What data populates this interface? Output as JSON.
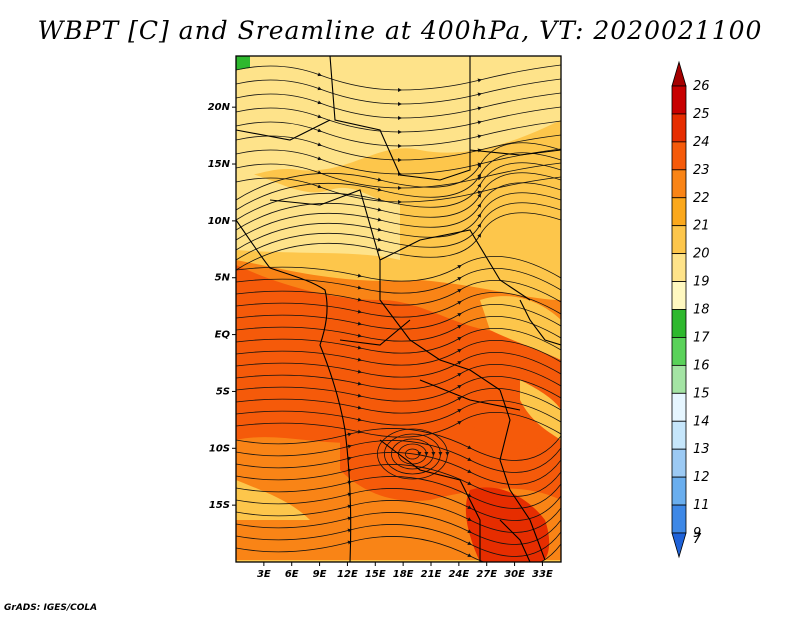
{
  "title": "WBPT [C] and Sreamline at 400hPa, VT: 2020021100",
  "credit": "GrADS: IGES/COLA",
  "map": {
    "lon_range": [
      0,
      35
    ],
    "lat_range": [
      -20,
      24.5
    ],
    "lat_ticks": [
      {
        "value": 20,
        "label": "20N"
      },
      {
        "value": 15,
        "label": "15N"
      },
      {
        "value": 10,
        "label": "10N"
      },
      {
        "value": 5,
        "label": "5N"
      },
      {
        "value": 0,
        "label": "EQ"
      },
      {
        "value": -5,
        "label": "5S"
      },
      {
        "value": -10,
        "label": "10S"
      },
      {
        "value": -15,
        "label": "15S"
      }
    ],
    "lon_ticks": [
      {
        "value": 3,
        "label": "3E"
      },
      {
        "value": 6,
        "label": "6E"
      },
      {
        "value": 9,
        "label": "9E"
      },
      {
        "value": 12,
        "label": "12E"
      },
      {
        "value": 15,
        "label": "15E"
      },
      {
        "value": 18,
        "label": "18E"
      },
      {
        "value": 21,
        "label": "21E"
      },
      {
        "value": 24,
        "label": "24E"
      },
      {
        "value": 27,
        "label": "27E"
      },
      {
        "value": 30,
        "label": "30E"
      },
      {
        "value": 33,
        "label": "33E"
      }
    ]
  },
  "colorbar": {
    "labels": [
      "26",
      "25",
      "24",
      "23",
      "22",
      "21",
      "20",
      "19",
      "18",
      "17",
      "16",
      "15",
      "14",
      "13",
      "12",
      "11",
      "9",
      "7"
    ],
    "colors": [
      "#a50000",
      "#c80000",
      "#e62d00",
      "#f55a0a",
      "#f98416",
      "#fba81c",
      "#fdc64b",
      "#fee38a",
      "#fff8c0",
      "#2eb82e",
      "#5ad25a",
      "#a4e4a4",
      "#e6f6ff",
      "#c6e6fb",
      "#9ccaf4",
      "#6aaeee",
      "#3e88e6",
      "#1f62d8"
    ]
  }
}
